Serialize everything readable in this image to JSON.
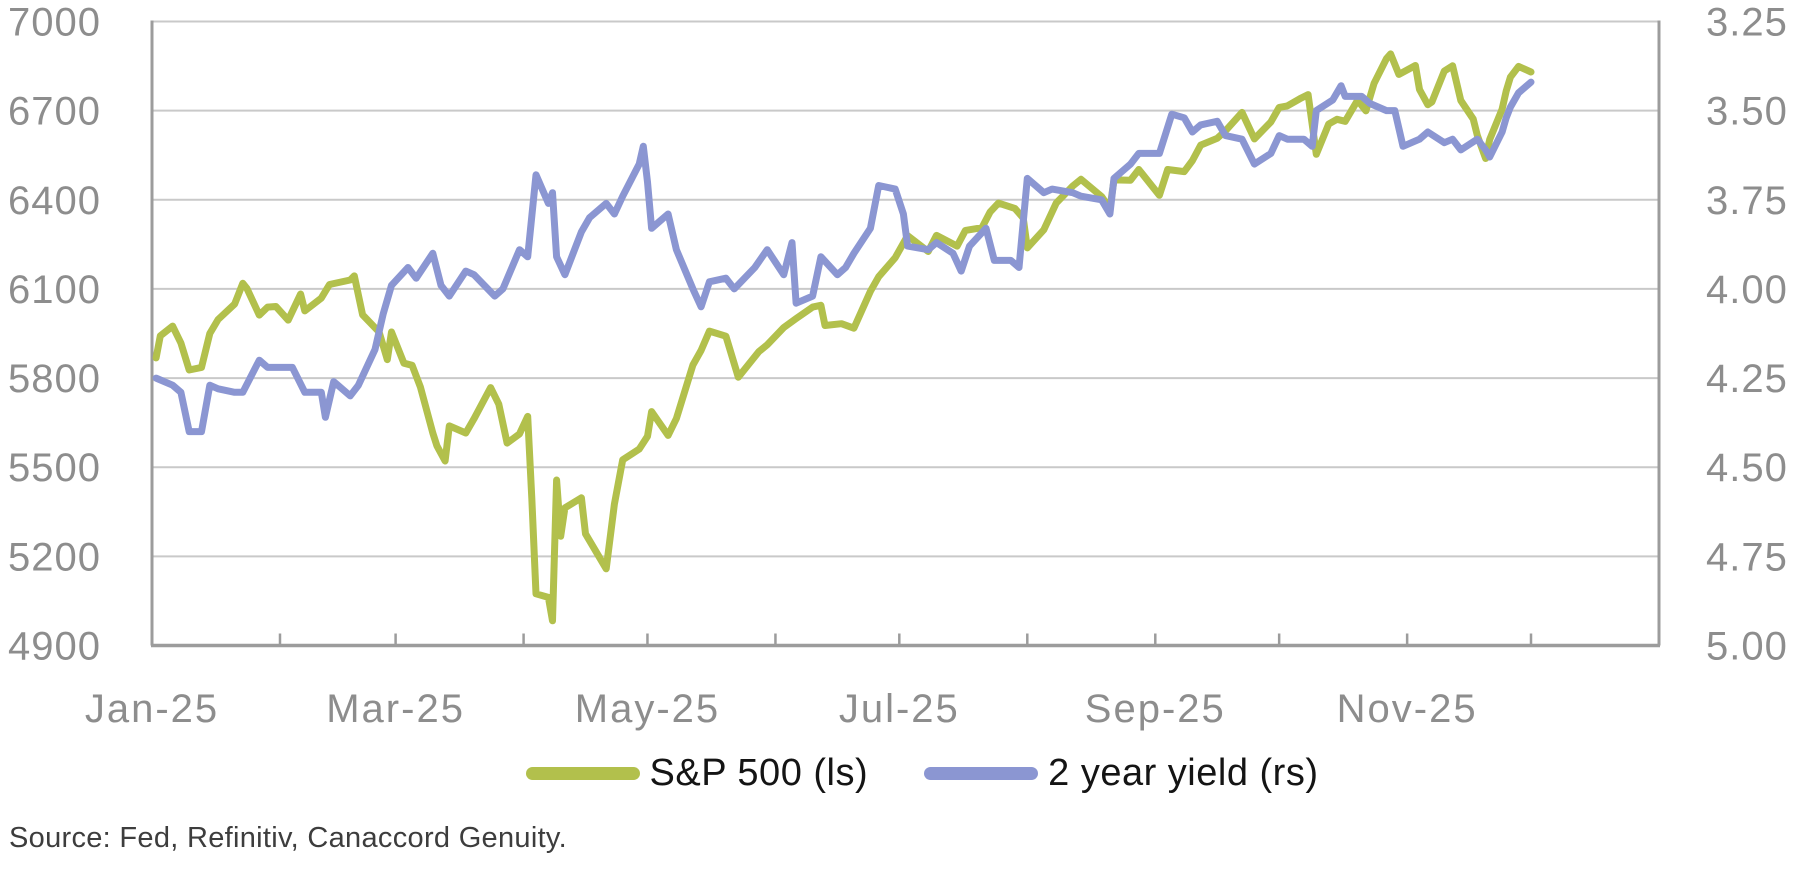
{
  "chart_data": {
    "type": "line",
    "title": "",
    "x_axis": {
      "tick_labels": [
        "Jan-25",
        "Mar-25",
        "May-25",
        "Jul-25",
        "Sep-25",
        "Nov-25"
      ],
      "labeled_months": [
        1,
        3,
        5,
        7,
        9,
        11
      ],
      "range_start": "2025-01-01",
      "range_end": "2026-01-01",
      "minor_ticks": "monthly-inside"
    },
    "left_axis": {
      "min": 4900,
      "max": 7000,
      "tick_interval": 300,
      "tick_labels": [
        "7000",
        "6700",
        "6400",
        "6100",
        "5800",
        "5500",
        "5200",
        "4900"
      ]
    },
    "right_axis": {
      "min": 3.25,
      "max": 5.0,
      "tick_interval": 0.25,
      "inverted": true,
      "tick_labels": [
        "3.25",
        "3.50",
        "3.75",
        "4.00",
        "4.25",
        "4.50",
        "4.75",
        "5.00"
      ]
    },
    "grid": true,
    "legend_position": "bottom",
    "series": [
      {
        "name": "S&P 500 (ls)",
        "axis": "left",
        "color": "#b2c04c",
        "points": [
          [
            "2025-01-02",
            5868
          ],
          [
            "2025-01-03",
            5942
          ],
          [
            "2025-01-06",
            5975
          ],
          [
            "2025-01-08",
            5918
          ],
          [
            "2025-01-10",
            5827
          ],
          [
            "2025-01-13",
            5836
          ],
          [
            "2025-01-15",
            5950
          ],
          [
            "2025-01-17",
            5997
          ],
          [
            "2025-01-21",
            6049
          ],
          [
            "2025-01-23",
            6119
          ],
          [
            "2025-01-24",
            6101
          ],
          [
            "2025-01-27",
            6012
          ],
          [
            "2025-01-29",
            6039
          ],
          [
            "2025-01-31",
            6041
          ],
          [
            "2025-02-03",
            5995
          ],
          [
            "2025-02-06",
            6083
          ],
          [
            "2025-02-07",
            6026
          ],
          [
            "2025-02-11",
            6069
          ],
          [
            "2025-02-13",
            6115
          ],
          [
            "2025-02-18",
            6130
          ],
          [
            "2025-02-19",
            6144
          ],
          [
            "2025-02-21",
            6013
          ],
          [
            "2025-02-25",
            5955
          ],
          [
            "2025-02-27",
            5862
          ],
          [
            "2025-02-28",
            5955
          ],
          [
            "2025-03-03",
            5850
          ],
          [
            "2025-03-05",
            5843
          ],
          [
            "2025-03-07",
            5770
          ],
          [
            "2025-03-10",
            5615
          ],
          [
            "2025-03-11",
            5572
          ],
          [
            "2025-03-13",
            5521
          ],
          [
            "2025-03-14",
            5639
          ],
          [
            "2025-03-18",
            5615
          ],
          [
            "2025-03-20",
            5663
          ],
          [
            "2025-03-24",
            5768
          ],
          [
            "2025-03-26",
            5712
          ],
          [
            "2025-03-28",
            5581
          ],
          [
            "2025-03-31",
            5612
          ],
          [
            "2025-04-02",
            5671
          ],
          [
            "2025-04-03",
            5396
          ],
          [
            "2025-04-04",
            5074
          ],
          [
            "2025-04-07",
            5062
          ],
          [
            "2025-04-08",
            4983
          ],
          [
            "2025-04-09",
            5457
          ],
          [
            "2025-04-10",
            5268
          ],
          [
            "2025-04-11",
            5363
          ],
          [
            "2025-04-15",
            5397
          ],
          [
            "2025-04-16",
            5276
          ],
          [
            "2025-04-21",
            5158
          ],
          [
            "2025-04-23",
            5376
          ],
          [
            "2025-04-25",
            5525
          ],
          [
            "2025-04-29",
            5561
          ],
          [
            "2025-05-01",
            5604
          ],
          [
            "2025-05-02",
            5687
          ],
          [
            "2025-05-06",
            5607
          ],
          [
            "2025-05-08",
            5664
          ],
          [
            "2025-05-12",
            5844
          ],
          [
            "2025-05-14",
            5893
          ],
          [
            "2025-05-16",
            5958
          ],
          [
            "2025-05-20",
            5941
          ],
          [
            "2025-05-23",
            5803
          ],
          [
            "2025-05-28",
            5889
          ],
          [
            "2025-05-30",
            5912
          ],
          [
            "2025-06-03",
            5970
          ],
          [
            "2025-06-06",
            6000
          ],
          [
            "2025-06-10",
            6039
          ],
          [
            "2025-06-12",
            6045
          ],
          [
            "2025-06-13",
            5977
          ],
          [
            "2025-06-17",
            5983
          ],
          [
            "2025-06-20",
            5968
          ],
          [
            "2025-06-24",
            6092
          ],
          [
            "2025-06-26",
            6141
          ],
          [
            "2025-06-30",
            6205
          ],
          [
            "2025-07-03",
            6279
          ],
          [
            "2025-07-08",
            6226
          ],
          [
            "2025-07-10",
            6280
          ],
          [
            "2025-07-15",
            6244
          ],
          [
            "2025-07-17",
            6297
          ],
          [
            "2025-07-21",
            6306
          ],
          [
            "2025-07-23",
            6359
          ],
          [
            "2025-07-25",
            6389
          ],
          [
            "2025-07-29",
            6371
          ],
          [
            "2025-07-31",
            6339
          ],
          [
            "2025-08-01",
            6238
          ],
          [
            "2025-08-05",
            6299
          ],
          [
            "2025-08-08",
            6389
          ],
          [
            "2025-08-12",
            6446
          ],
          [
            "2025-08-14",
            6469
          ],
          [
            "2025-08-19",
            6411
          ],
          [
            "2025-08-21",
            6370
          ],
          [
            "2025-08-22",
            6467
          ],
          [
            "2025-08-26",
            6466
          ],
          [
            "2025-08-28",
            6502
          ],
          [
            "2025-09-02",
            6415
          ],
          [
            "2025-09-04",
            6502
          ],
          [
            "2025-09-08",
            6495
          ],
          [
            "2025-09-10",
            6532
          ],
          [
            "2025-09-12",
            6584
          ],
          [
            "2025-09-16",
            6607
          ],
          [
            "2025-09-18",
            6632
          ],
          [
            "2025-09-22",
            6694
          ],
          [
            "2025-09-25",
            6605
          ],
          [
            "2025-09-29",
            6662
          ],
          [
            "2025-10-01",
            6711
          ],
          [
            "2025-10-03",
            6716
          ],
          [
            "2025-10-06",
            6740
          ],
          [
            "2025-10-08",
            6754
          ],
          [
            "2025-10-10",
            6553
          ],
          [
            "2025-10-13",
            6655
          ],
          [
            "2025-10-15",
            6671
          ],
          [
            "2025-10-17",
            6664
          ],
          [
            "2025-10-20",
            6735
          ],
          [
            "2025-10-22",
            6699
          ],
          [
            "2025-10-24",
            6792
          ],
          [
            "2025-10-27",
            6875
          ],
          [
            "2025-10-28",
            6891
          ],
          [
            "2025-10-30",
            6822
          ],
          [
            "2025-11-03",
            6852
          ],
          [
            "2025-11-04",
            6771
          ],
          [
            "2025-11-06",
            6720
          ],
          [
            "2025-11-07",
            6729
          ],
          [
            "2025-11-10",
            6833
          ],
          [
            "2025-11-12",
            6851
          ],
          [
            "2025-11-14",
            6734
          ],
          [
            "2025-11-17",
            6672
          ],
          [
            "2025-11-18",
            6617
          ],
          [
            "2025-11-20",
            6539
          ],
          [
            "2025-11-21",
            6603
          ],
          [
            "2025-11-24",
            6705
          ],
          [
            "2025-11-25",
            6766
          ],
          [
            "2025-11-26",
            6813
          ],
          [
            "2025-11-28",
            6849
          ],
          [
            "2025-12-01",
            6830
          ]
        ]
      },
      {
        "name": "2 year yield (rs)",
        "axis": "right",
        "color": "#8b96d2",
        "points": [
          [
            "2025-01-02",
            4.25
          ],
          [
            "2025-01-06",
            4.27
          ],
          [
            "2025-01-08",
            4.29
          ],
          [
            "2025-01-10",
            4.4
          ],
          [
            "2025-01-13",
            4.4
          ],
          [
            "2025-01-15",
            4.27
          ],
          [
            "2025-01-17",
            4.28
          ],
          [
            "2025-01-21",
            4.29
          ],
          [
            "2025-01-23",
            4.29
          ],
          [
            "2025-01-27",
            4.2
          ],
          [
            "2025-01-29",
            4.22
          ],
          [
            "2025-01-31",
            4.22
          ],
          [
            "2025-02-04",
            4.22
          ],
          [
            "2025-02-07",
            4.29
          ],
          [
            "2025-02-11",
            4.29
          ],
          [
            "2025-02-12",
            4.36
          ],
          [
            "2025-02-14",
            4.26
          ],
          [
            "2025-02-18",
            4.3
          ],
          [
            "2025-02-20",
            4.27
          ],
          [
            "2025-02-24",
            4.17
          ],
          [
            "2025-02-26",
            4.07
          ],
          [
            "2025-02-28",
            3.99
          ],
          [
            "2025-03-04",
            3.94
          ],
          [
            "2025-03-06",
            3.97
          ],
          [
            "2025-03-10",
            3.9
          ],
          [
            "2025-03-12",
            3.99
          ],
          [
            "2025-03-14",
            4.02
          ],
          [
            "2025-03-18",
            3.95
          ],
          [
            "2025-03-20",
            3.96
          ],
          [
            "2025-03-25",
            4.02
          ],
          [
            "2025-03-27",
            4.0
          ],
          [
            "2025-03-31",
            3.89
          ],
          [
            "2025-04-02",
            3.91
          ],
          [
            "2025-04-04",
            3.68
          ],
          [
            "2025-04-07",
            3.76
          ],
          [
            "2025-04-08",
            3.73
          ],
          [
            "2025-04-09",
            3.91
          ],
          [
            "2025-04-11",
            3.96
          ],
          [
            "2025-04-15",
            3.84
          ],
          [
            "2025-04-17",
            3.8
          ],
          [
            "2025-04-21",
            3.76
          ],
          [
            "2025-04-23",
            3.79
          ],
          [
            "2025-04-25",
            3.74
          ],
          [
            "2025-04-29",
            3.65
          ],
          [
            "2025-04-30",
            3.6
          ],
          [
            "2025-05-01",
            3.7
          ],
          [
            "2025-05-02",
            3.83
          ],
          [
            "2025-05-06",
            3.79
          ],
          [
            "2025-05-08",
            3.89
          ],
          [
            "2025-05-12",
            4.0
          ],
          [
            "2025-05-14",
            4.05
          ],
          [
            "2025-05-16",
            3.98
          ],
          [
            "2025-05-20",
            3.97
          ],
          [
            "2025-05-22",
            4.0
          ],
          [
            "2025-05-27",
            3.94
          ],
          [
            "2025-05-30",
            3.89
          ],
          [
            "2025-06-03",
            3.96
          ],
          [
            "2025-06-05",
            3.87
          ],
          [
            "2025-06-06",
            4.04
          ],
          [
            "2025-06-10",
            4.02
          ],
          [
            "2025-06-12",
            3.91
          ],
          [
            "2025-06-16",
            3.96
          ],
          [
            "2025-06-18",
            3.94
          ],
          [
            "2025-06-20",
            3.9
          ],
          [
            "2025-06-24",
            3.83
          ],
          [
            "2025-06-26",
            3.71
          ],
          [
            "2025-06-30",
            3.72
          ],
          [
            "2025-07-02",
            3.79
          ],
          [
            "2025-07-03",
            3.88
          ],
          [
            "2025-07-08",
            3.89
          ],
          [
            "2025-07-10",
            3.87
          ],
          [
            "2025-07-14",
            3.9
          ],
          [
            "2025-07-16",
            3.95
          ],
          [
            "2025-07-18",
            3.88
          ],
          [
            "2025-07-22",
            3.83
          ],
          [
            "2025-07-24",
            3.92
          ],
          [
            "2025-07-28",
            3.92
          ],
          [
            "2025-07-30",
            3.94
          ],
          [
            "2025-08-01",
            3.69
          ],
          [
            "2025-08-05",
            3.73
          ],
          [
            "2025-08-07",
            3.72
          ],
          [
            "2025-08-12",
            3.73
          ],
          [
            "2025-08-14",
            3.74
          ],
          [
            "2025-08-19",
            3.75
          ],
          [
            "2025-08-21",
            3.79
          ],
          [
            "2025-08-22",
            3.69
          ],
          [
            "2025-08-26",
            3.65
          ],
          [
            "2025-08-28",
            3.62
          ],
          [
            "2025-09-02",
            3.62
          ],
          [
            "2025-09-05",
            3.51
          ],
          [
            "2025-09-08",
            3.52
          ],
          [
            "2025-09-10",
            3.56
          ],
          [
            "2025-09-12",
            3.54
          ],
          [
            "2025-09-16",
            3.53
          ],
          [
            "2025-09-18",
            3.57
          ],
          [
            "2025-09-22",
            3.58
          ],
          [
            "2025-09-25",
            3.65
          ],
          [
            "2025-09-29",
            3.62
          ],
          [
            "2025-10-01",
            3.57
          ],
          [
            "2025-10-03",
            3.58
          ],
          [
            "2025-10-07",
            3.58
          ],
          [
            "2025-10-09",
            3.6
          ],
          [
            "2025-10-10",
            3.5
          ],
          [
            "2025-10-14",
            3.47
          ],
          [
            "2025-10-16",
            3.43
          ],
          [
            "2025-10-17",
            3.46
          ],
          [
            "2025-10-21",
            3.46
          ],
          [
            "2025-10-23",
            3.48
          ],
          [
            "2025-10-27",
            3.5
          ],
          [
            "2025-10-29",
            3.5
          ],
          [
            "2025-10-31",
            3.6
          ],
          [
            "2025-11-04",
            3.58
          ],
          [
            "2025-11-06",
            3.56
          ],
          [
            "2025-11-10",
            3.59
          ],
          [
            "2025-11-12",
            3.58
          ],
          [
            "2025-11-14",
            3.61
          ],
          [
            "2025-11-18",
            3.58
          ],
          [
            "2025-11-20",
            3.61
          ],
          [
            "2025-11-21",
            3.63
          ],
          [
            "2025-11-24",
            3.56
          ],
          [
            "2025-11-25",
            3.52
          ],
          [
            "2025-11-26",
            3.49
          ],
          [
            "2025-11-28",
            3.45
          ],
          [
            "2025-12-01",
            3.42
          ]
        ]
      }
    ],
    "source_note": "Source: Fed, Refinitiv, Canaccord Genuity."
  },
  "legend": {
    "items": [
      {
        "label": "S&P 500 (ls)",
        "color": "#b2c04c"
      },
      {
        "label": "2 year yield (rs)",
        "color": "#8b96d2"
      }
    ]
  },
  "source": {
    "text": "Source: Fed, Refinitiv, Canaccord Genuity."
  },
  "colors": {
    "grid": "#c9c9c9",
    "axis_line": "#9c9c9c",
    "axis_text": "#8d8d8d",
    "legend_text": "#141414",
    "source_text": "#3d3d3d",
    "background": "#ffffff"
  }
}
